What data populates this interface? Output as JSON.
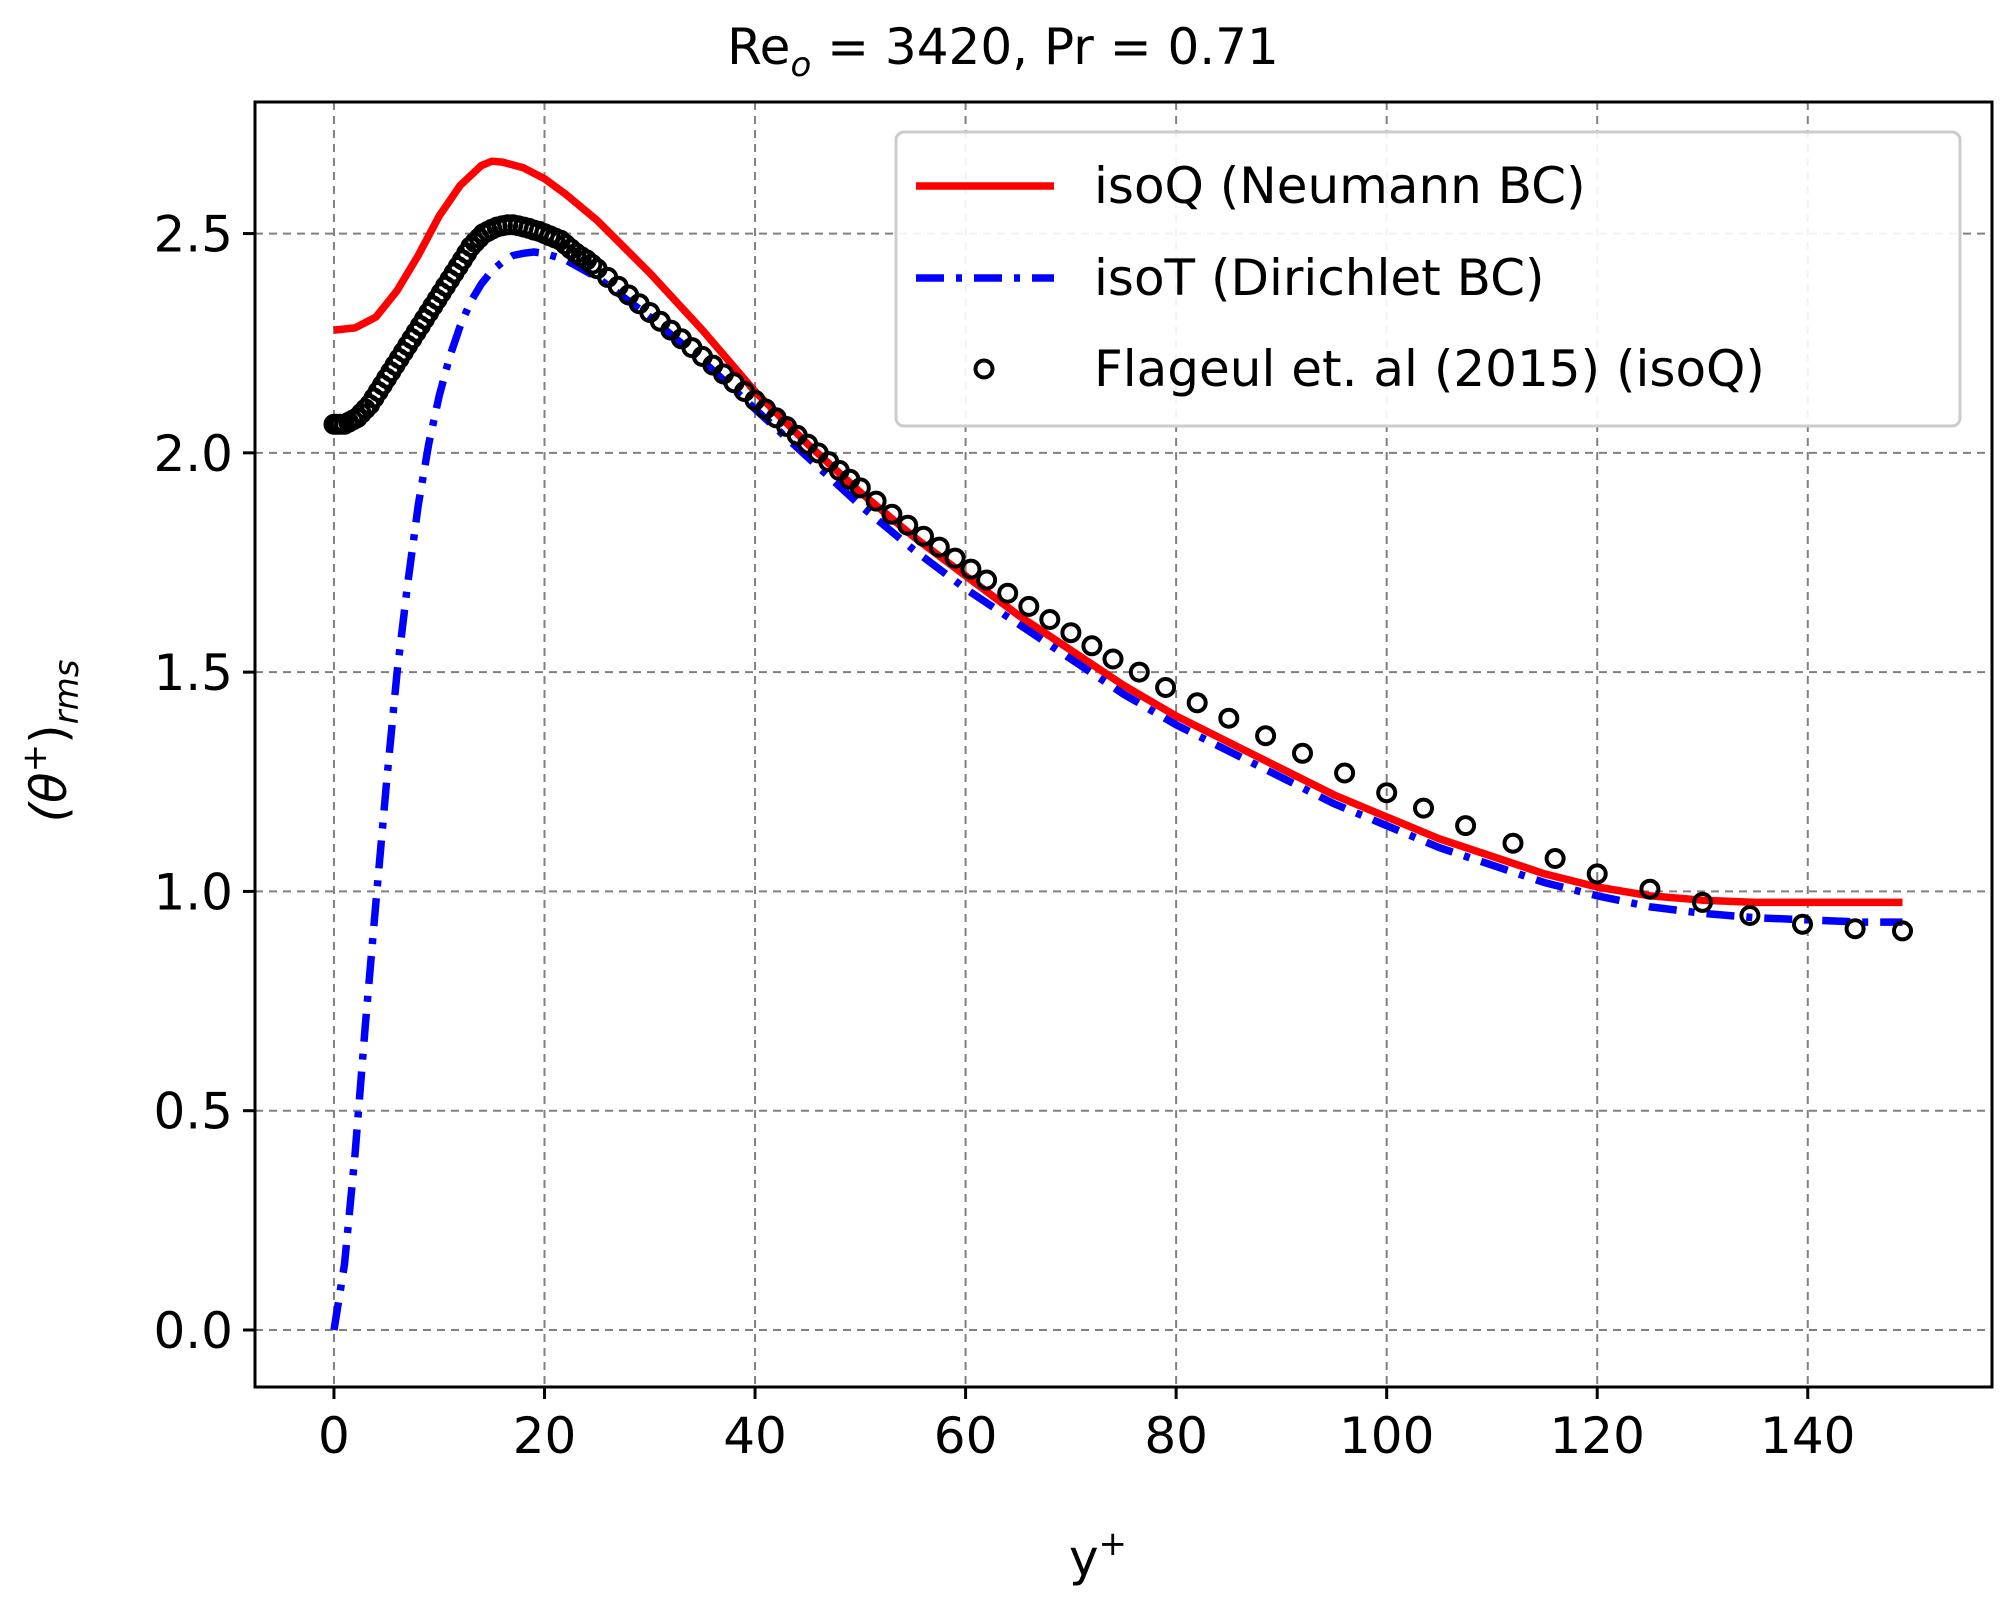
{
  "chart_data": {
    "type": "line",
    "title": {
      "main": "Re",
      "sub": "o",
      "rest": " = 3420, Pr = 0.71"
    },
    "xlabel": {
      "main": "y",
      "sup": "+"
    },
    "ylabel": {
      "open": "(θ",
      "sup": "+",
      "close": ")",
      "sub": "rms"
    },
    "xlim": [
      -7.5,
      157.5
    ],
    "ylim": [
      -0.13,
      2.8
    ],
    "xticks": [
      0,
      20,
      40,
      60,
      80,
      100,
      120,
      140
    ],
    "yticks": [
      0.0,
      0.5,
      1.0,
      1.5,
      2.0,
      2.5
    ],
    "xtick_labels": [
      "0",
      "20",
      "40",
      "60",
      "80",
      "100",
      "120",
      "140"
    ],
    "ytick_labels": [
      "0.0",
      "0.5",
      "1.0",
      "1.5",
      "2.0",
      "2.5"
    ],
    "grid": true,
    "legend_position": "top-right",
    "series": [
      {
        "name": "isoQ (Neumann BC)",
        "style": "solid",
        "color": "#ff0000",
        "points": [
          [
            0,
            2.28
          ],
          [
            2,
            2.285
          ],
          [
            4,
            2.31
          ],
          [
            6,
            2.37
          ],
          [
            8,
            2.45
          ],
          [
            10,
            2.54
          ],
          [
            12,
            2.61
          ],
          [
            14,
            2.655
          ],
          [
            15,
            2.665
          ],
          [
            16,
            2.663
          ],
          [
            18,
            2.65
          ],
          [
            20,
            2.625
          ],
          [
            22,
            2.59
          ],
          [
            25,
            2.53
          ],
          [
            30,
            2.41
          ],
          [
            35,
            2.28
          ],
          [
            40,
            2.14
          ],
          [
            45,
            2.02
          ],
          [
            50,
            1.91
          ],
          [
            55,
            1.81
          ],
          [
            60,
            1.72
          ],
          [
            65,
            1.63
          ],
          [
            70,
            1.55
          ],
          [
            75,
            1.47
          ],
          [
            80,
            1.4
          ],
          [
            85,
            1.34
          ],
          [
            90,
            1.28
          ],
          [
            95,
            1.22
          ],
          [
            100,
            1.17
          ],
          [
            105,
            1.12
          ],
          [
            110,
            1.08
          ],
          [
            115,
            1.04
          ],
          [
            120,
            1.01
          ],
          [
            125,
            0.99
          ],
          [
            130,
            0.98
          ],
          [
            135,
            0.975
          ],
          [
            140,
            0.975
          ],
          [
            145,
            0.975
          ],
          [
            149,
            0.975
          ]
        ]
      },
      {
        "name": "isoT (Dirichlet BC)",
        "style": "dashdot",
        "color": "#0000ff",
        "points": [
          [
            0,
            0.0
          ],
          [
            1,
            0.15
          ],
          [
            2,
            0.4
          ],
          [
            3,
            0.7
          ],
          [
            4,
            0.98
          ],
          [
            5,
            1.25
          ],
          [
            6,
            1.5
          ],
          [
            7,
            1.7
          ],
          [
            8,
            1.88
          ],
          [
            9,
            2.02
          ],
          [
            10,
            2.13
          ],
          [
            11,
            2.22
          ],
          [
            12,
            2.29
          ],
          [
            13,
            2.345
          ],
          [
            14,
            2.385
          ],
          [
            15,
            2.415
          ],
          [
            16,
            2.435
          ],
          [
            17,
            2.45
          ],
          [
            18,
            2.455
          ],
          [
            19,
            2.458
          ],
          [
            20,
            2.455
          ],
          [
            22,
            2.44
          ],
          [
            25,
            2.4
          ],
          [
            30,
            2.31
          ],
          [
            35,
            2.21
          ],
          [
            40,
            2.1
          ],
          [
            45,
            1.99
          ],
          [
            50,
            1.88
          ],
          [
            55,
            1.78
          ],
          [
            60,
            1.69
          ],
          [
            65,
            1.61
          ],
          [
            70,
            1.53
          ],
          [
            75,
            1.45
          ],
          [
            80,
            1.38
          ],
          [
            85,
            1.32
          ],
          [
            90,
            1.26
          ],
          [
            95,
            1.2
          ],
          [
            100,
            1.15
          ],
          [
            105,
            1.1
          ],
          [
            110,
            1.06
          ],
          [
            115,
            1.02
          ],
          [
            120,
            0.99
          ],
          [
            125,
            0.965
          ],
          [
            130,
            0.95
          ],
          [
            135,
            0.94
          ],
          [
            140,
            0.935
          ],
          [
            145,
            0.93
          ],
          [
            149,
            0.93
          ]
        ]
      },
      {
        "name": "Flageul et. al (2015) (isoQ)",
        "style": "markers",
        "color": "#000000",
        "points": [
          [
            0,
            2.065
          ],
          [
            0.3,
            2.065
          ],
          [
            0.6,
            2.065
          ],
          [
            1.0,
            2.065
          ],
          [
            1.4,
            2.07
          ],
          [
            1.8,
            2.075
          ],
          [
            2.2,
            2.08
          ],
          [
            2.6,
            2.09
          ],
          [
            3.0,
            2.1
          ],
          [
            3.4,
            2.11
          ],
          [
            3.8,
            2.125
          ],
          [
            4.2,
            2.14
          ],
          [
            4.6,
            2.155
          ],
          [
            5.0,
            2.17
          ],
          [
            5.4,
            2.185
          ],
          [
            5.8,
            2.2
          ],
          [
            6.2,
            2.215
          ],
          [
            6.6,
            2.23
          ],
          [
            7.0,
            2.245
          ],
          [
            7.4,
            2.26
          ],
          [
            7.8,
            2.275
          ],
          [
            8.2,
            2.29
          ],
          [
            8.6,
            2.305
          ],
          [
            9.0,
            2.32
          ],
          [
            9.4,
            2.335
          ],
          [
            9.8,
            2.35
          ],
          [
            10.2,
            2.365
          ],
          [
            10.6,
            2.38
          ],
          [
            11.0,
            2.395
          ],
          [
            11.4,
            2.41
          ],
          [
            11.8,
            2.425
          ],
          [
            12.2,
            2.44
          ],
          [
            12.6,
            2.455
          ],
          [
            13.0,
            2.47
          ],
          [
            13.4,
            2.48
          ],
          [
            13.8,
            2.49
          ],
          [
            14.2,
            2.5
          ],
          [
            14.6,
            2.505
          ],
          [
            15.0,
            2.51
          ],
          [
            15.5,
            2.515
          ],
          [
            16.0,
            2.518
          ],
          [
            16.5,
            2.52
          ],
          [
            17.0,
            2.52
          ],
          [
            17.5,
            2.518
          ],
          [
            18.0,
            2.515
          ],
          [
            18.5,
            2.512
          ],
          [
            19.0,
            2.508
          ],
          [
            19.5,
            2.505
          ],
          [
            20.0,
            2.5
          ],
          [
            20.5,
            2.495
          ],
          [
            21.0,
            2.49
          ],
          [
            21.5,
            2.485
          ],
          [
            22.0,
            2.475
          ],
          [
            22.5,
            2.465
          ],
          [
            23.0,
            2.455
          ],
          [
            23.5,
            2.447
          ],
          [
            24.0,
            2.44
          ],
          [
            24.5,
            2.43
          ],
          [
            25.0,
            2.42
          ],
          [
            26.0,
            2.4
          ],
          [
            27.0,
            2.38
          ],
          [
            28.0,
            2.36
          ],
          [
            29.0,
            2.34
          ],
          [
            30.0,
            2.32
          ],
          [
            31.0,
            2.3
          ],
          [
            32.0,
            2.28
          ],
          [
            33.0,
            2.26
          ],
          [
            34.0,
            2.24
          ],
          [
            35.0,
            2.22
          ],
          [
            36.0,
            2.2
          ],
          [
            37.0,
            2.18
          ],
          [
            38.0,
            2.16
          ],
          [
            39.0,
            2.14
          ],
          [
            40.0,
            2.12
          ],
          [
            41.0,
            2.1
          ],
          [
            42.0,
            2.08
          ],
          [
            43.0,
            2.06
          ],
          [
            44.0,
            2.04
          ],
          [
            45.0,
            2.02
          ],
          [
            46.0,
            2.0
          ],
          [
            47.0,
            1.98
          ],
          [
            48.0,
            1.96
          ],
          [
            49.0,
            1.94
          ],
          [
            50.0,
            1.92
          ],
          [
            51.5,
            1.89
          ],
          [
            53.0,
            1.86
          ],
          [
            54.5,
            1.835
          ],
          [
            56.0,
            1.81
          ],
          [
            57.5,
            1.785
          ],
          [
            59.0,
            1.76
          ],
          [
            60.5,
            1.735
          ],
          [
            62.0,
            1.71
          ],
          [
            64.0,
            1.68
          ],
          [
            66.0,
            1.65
          ],
          [
            68.0,
            1.62
          ],
          [
            70.0,
            1.59
          ],
          [
            72.0,
            1.56
          ],
          [
            74.0,
            1.53
          ],
          [
            76.5,
            1.5
          ],
          [
            79.0,
            1.465
          ],
          [
            82.0,
            1.43
          ],
          [
            85.0,
            1.395
          ],
          [
            88.5,
            1.355
          ],
          [
            92.0,
            1.315
          ],
          [
            96.0,
            1.27
          ],
          [
            100.0,
            1.225
          ],
          [
            103.5,
            1.19
          ],
          [
            107.5,
            1.15
          ],
          [
            112.0,
            1.11
          ],
          [
            116.0,
            1.075
          ],
          [
            120.0,
            1.04
          ],
          [
            125.0,
            1.005
          ],
          [
            130.0,
            0.975
          ],
          [
            134.5,
            0.945
          ],
          [
            139.5,
            0.925
          ],
          [
            144.5,
            0.915
          ],
          [
            149.0,
            0.91
          ]
        ]
      }
    ]
  }
}
